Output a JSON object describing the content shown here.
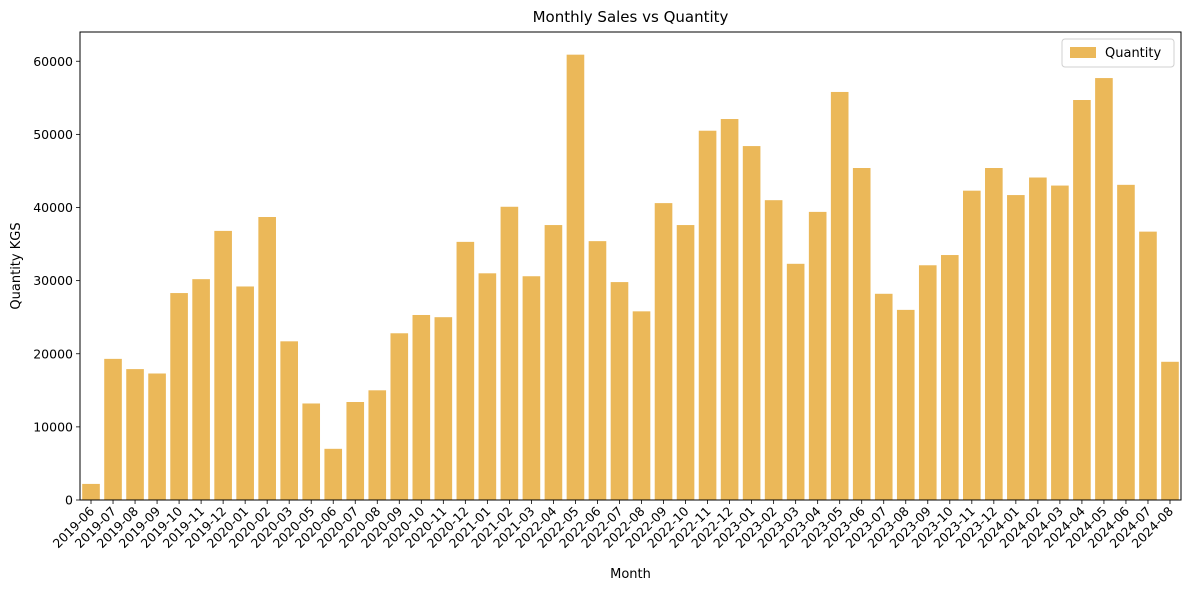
{
  "chart_data": {
    "type": "bar",
    "title": "Monthly Sales vs Quantity",
    "xlabel": "Month",
    "ylabel": "Quantity KGS",
    "ylim": [
      0,
      64000
    ],
    "yticks": [
      "0",
      "10000",
      "20000",
      "30000",
      "40000",
      "50000",
      "60000"
    ],
    "ytick_values": [
      0,
      10000,
      20000,
      30000,
      40000,
      50000,
      60000
    ],
    "grid": false,
    "legend": {
      "placement": "top-right",
      "entries": [
        "Quantity"
      ]
    },
    "bar_color": "#ebb859",
    "categories": [
      "2019-06",
      "2019-07",
      "2019-08",
      "2019-09",
      "2019-10",
      "2019-11",
      "2019-12",
      "2020-01",
      "2020-02",
      "2020-03",
      "2020-05",
      "2020-06",
      "2020-07",
      "2020-08",
      "2020-09",
      "2020-10",
      "2020-11",
      "2020-12",
      "2021-01",
      "2021-02",
      "2021-03",
      "2022-04",
      "2022-05",
      "2022-06",
      "2022-07",
      "2022-08",
      "2022-09",
      "2022-10",
      "2022-11",
      "2022-12",
      "2023-01",
      "2023-02",
      "2023-03",
      "2023-04",
      "2023-05",
      "2023-06",
      "2023-07",
      "2023-08",
      "2023-09",
      "2023-10",
      "2023-11",
      "2023-12",
      "2024-01",
      "2024-02",
      "2024-03",
      "2024-04",
      "2024-05",
      "2024-06",
      "2024-07",
      "2024-08"
    ],
    "series": [
      {
        "name": "Quantity",
        "values": [
          2200,
          19300,
          17900,
          17300,
          28300,
          30200,
          36800,
          29200,
          38700,
          21700,
          13200,
          7000,
          13400,
          15000,
          22800,
          25300,
          25000,
          35300,
          31000,
          40100,
          30600,
          37600,
          60900,
          35400,
          29800,
          25800,
          40600,
          37600,
          50500,
          52100,
          48400,
          41000,
          32300,
          39400,
          55800,
          45400,
          28200,
          26000,
          32100,
          33500,
          42300,
          45400,
          41700,
          44100,
          43000,
          54700,
          57700,
          43100,
          36700,
          18900
        ]
      }
    ]
  }
}
